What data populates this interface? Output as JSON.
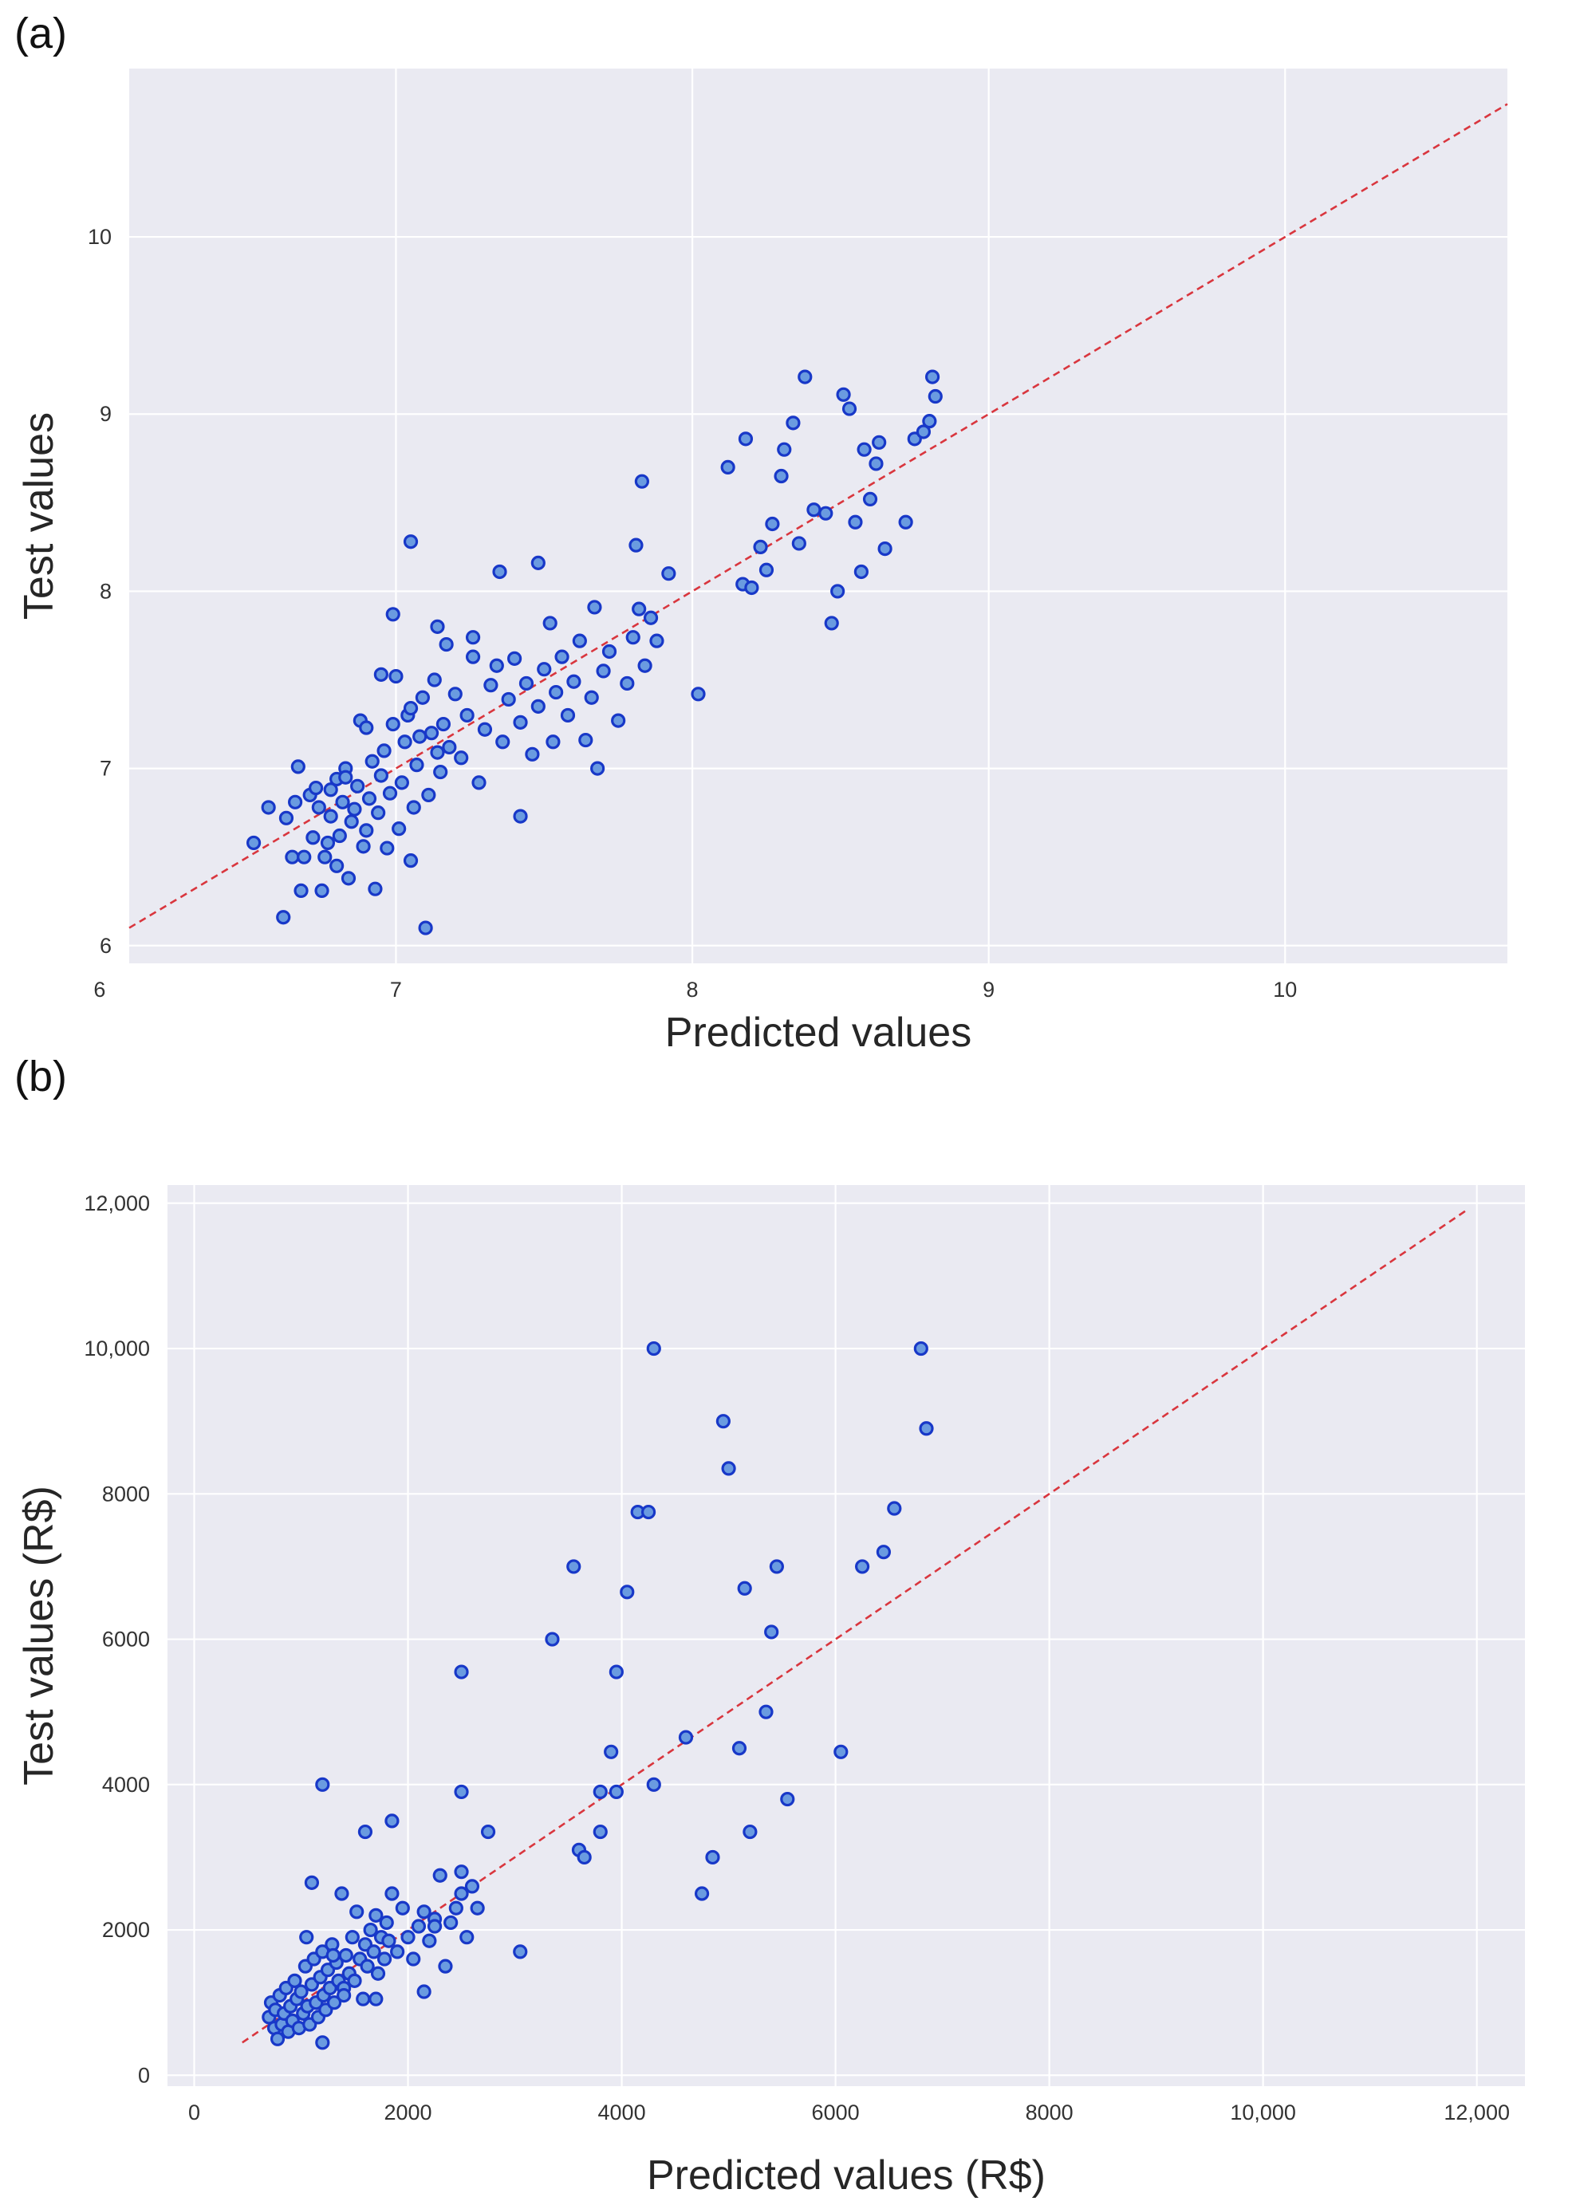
{
  "chart_data": [
    {
      "panel": "(a)",
      "type": "scatter",
      "title": "",
      "xlabel": "Predicted values",
      "ylabel": "Test values",
      "xlim": [
        6.1,
        10.75
      ],
      "ylim": [
        5.9,
        10.95
      ],
      "xticks": [
        6,
        7,
        8,
        9,
        10
      ],
      "yticks": [
        6,
        7,
        8,
        9,
        10
      ],
      "xtick_labels": [
        "6",
        "7",
        "8",
        "9",
        "10"
      ],
      "ytick_labels": [
        "6",
        "7",
        "8",
        "9",
        "10"
      ],
      "grid": true,
      "reference_line": {
        "style": "dashed",
        "color": "#d9363e",
        "from": [
          6.1,
          6.1
        ],
        "to": [
          10.75,
          10.75
        ]
      },
      "marker_fill": "#6a9be0",
      "marker_edge": "#1838c8",
      "points": [
        [
          6.52,
          6.58
        ],
        [
          6.57,
          6.78
        ],
        [
          6.62,
          6.16
        ],
        [
          6.63,
          6.72
        ],
        [
          6.65,
          6.5
        ],
        [
          6.66,
          6.81
        ],
        [
          6.67,
          7.01
        ],
        [
          6.68,
          6.31
        ],
        [
          6.69,
          6.5
        ],
        [
          6.71,
          6.85
        ],
        [
          6.72,
          6.61
        ],
        [
          6.73,
          6.89
        ],
        [
          6.74,
          6.78
        ],
        [
          6.75,
          6.31
        ],
        [
          6.76,
          6.5
        ],
        [
          6.77,
          6.58
        ],
        [
          6.78,
          6.73
        ],
        [
          6.78,
          6.88
        ],
        [
          6.8,
          6.45
        ],
        [
          6.8,
          6.94
        ],
        [
          6.81,
          6.62
        ],
        [
          6.82,
          6.81
        ],
        [
          6.83,
          7.0
        ],
        [
          6.84,
          6.38
        ],
        [
          6.85,
          6.7
        ],
        [
          6.86,
          6.77
        ],
        [
          6.87,
          6.9
        ],
        [
          6.88,
          7.27
        ],
        [
          6.89,
          6.56
        ],
        [
          6.9,
          6.65
        ],
        [
          6.91,
          6.83
        ],
        [
          6.92,
          7.04
        ],
        [
          6.93,
          6.32
        ],
        [
          6.94,
          6.75
        ],
        [
          6.95,
          6.96
        ],
        [
          6.96,
          7.1
        ],
        [
          6.97,
          6.55
        ],
        [
          6.98,
          6.86
        ],
        [
          6.99,
          7.25
        ],
        [
          7.0,
          7.52
        ],
        [
          7.01,
          6.66
        ],
        [
          7.02,
          6.92
        ],
        [
          7.03,
          7.15
        ],
        [
          7.04,
          7.3
        ],
        [
          7.05,
          6.48
        ],
        [
          7.06,
          6.78
        ],
        [
          7.07,
          7.02
        ],
        [
          7.08,
          7.18
        ],
        [
          7.09,
          7.4
        ],
        [
          7.1,
          6.1
        ],
        [
          7.11,
          6.85
        ],
        [
          7.12,
          7.2
        ],
        [
          7.13,
          7.5
        ],
        [
          7.14,
          7.8
        ],
        [
          7.15,
          6.98
        ],
        [
          7.16,
          7.25
        ],
        [
          7.17,
          7.7
        ],
        [
          7.18,
          7.12
        ],
        [
          6.99,
          7.87
        ],
        [
          7.05,
          7.34
        ],
        [
          7.2,
          7.42
        ],
        [
          7.22,
          7.06
        ],
        [
          7.24,
          7.3
        ],
        [
          7.26,
          7.74
        ],
        [
          7.28,
          6.92
        ],
        [
          7.3,
          7.22
        ],
        [
          7.32,
          7.47
        ],
        [
          7.34,
          7.58
        ],
        [
          7.36,
          7.15
        ],
        [
          7.38,
          7.39
        ],
        [
          7.4,
          7.62
        ],
        [
          7.42,
          7.26
        ],
        [
          7.44,
          7.48
        ],
        [
          7.46,
          7.08
        ],
        [
          7.48,
          7.35
        ],
        [
          7.5,
          7.56
        ],
        [
          7.52,
          7.82
        ],
        [
          7.54,
          7.43
        ],
        [
          7.56,
          7.63
        ],
        [
          7.58,
          7.3
        ],
        [
          7.6,
          7.49
        ],
        [
          7.62,
          7.72
        ],
        [
          7.64,
          7.16
        ],
        [
          7.66,
          7.4
        ],
        [
          7.68,
          7.0
        ],
        [
          7.7,
          7.55
        ],
        [
          7.72,
          7.66
        ],
        [
          7.75,
          7.27
        ],
        [
          7.78,
          7.48
        ],
        [
          7.8,
          7.74
        ],
        [
          7.82,
          7.9
        ],
        [
          7.84,
          7.58
        ],
        [
          7.86,
          7.85
        ],
        [
          7.88,
          7.72
        ],
        [
          7.05,
          8.28
        ],
        [
          7.35,
          8.11
        ],
        [
          7.48,
          8.16
        ],
        [
          7.81,
          8.26
        ],
        [
          7.83,
          8.62
        ],
        [
          7.92,
          8.1
        ],
        [
          8.02,
          7.42
        ],
        [
          8.12,
          8.7
        ],
        [
          8.17,
          8.04
        ],
        [
          8.18,
          8.86
        ],
        [
          8.2,
          8.02
        ],
        [
          8.23,
          8.25
        ],
        [
          8.25,
          8.12
        ],
        [
          8.27,
          8.38
        ],
        [
          8.3,
          8.65
        ],
        [
          8.31,
          8.8
        ],
        [
          8.34,
          8.95
        ],
        [
          8.36,
          8.27
        ],
        [
          8.38,
          9.21
        ],
        [
          8.41,
          8.46
        ],
        [
          8.45,
          8.44
        ],
        [
          8.47,
          7.82
        ],
        [
          8.49,
          8.0
        ],
        [
          8.51,
          9.11
        ],
        [
          8.53,
          9.03
        ],
        [
          8.55,
          8.39
        ],
        [
          8.57,
          8.11
        ],
        [
          8.58,
          8.8
        ],
        [
          8.6,
          8.52
        ],
        [
          8.62,
          8.72
        ],
        [
          8.63,
          8.84
        ],
        [
          8.65,
          8.24
        ],
        [
          8.72,
          8.39
        ],
        [
          8.75,
          8.86
        ],
        [
          8.78,
          8.9
        ],
        [
          8.8,
          8.96
        ],
        [
          8.81,
          9.21
        ],
        [
          8.82,
          9.1
        ],
        [
          6.95,
          7.53
        ],
        [
          7.14,
          7.09
        ],
        [
          7.26,
          7.63
        ],
        [
          7.42,
          6.73
        ],
        [
          7.53,
          7.15
        ],
        [
          7.67,
          7.91
        ],
        [
          6.83,
          6.95
        ],
        [
          6.9,
          7.23
        ]
      ]
    },
    {
      "panel": "(b)",
      "type": "scatter",
      "title": "",
      "xlabel": "Predicted values (R$)",
      "ylabel": "Test values (R$)",
      "xlim": [
        -250,
        12450
      ],
      "ylim": [
        -150,
        12250
      ],
      "xticks": [
        0,
        2000,
        4000,
        6000,
        8000,
        10000,
        12000
      ],
      "yticks": [
        0,
        2000,
        4000,
        6000,
        8000,
        10000,
        12000
      ],
      "xtick_labels": [
        "0",
        "2000",
        "4000",
        "6000",
        "8000",
        "10,000",
        "12,000"
      ],
      "ytick_labels": [
        "0",
        "2000",
        "4000",
        "6000",
        "8000",
        "10,000",
        "12,000"
      ],
      "grid": true,
      "reference_line": {
        "style": "dashed",
        "color": "#d9363e",
        "from": [
          450,
          450
        ],
        "to": [
          11900,
          11900
        ]
      },
      "marker_fill": "#6a9be0",
      "marker_edge": "#1838c8",
      "points": [
        [
          700,
          800
        ],
        [
          720,
          1000
        ],
        [
          750,
          650
        ],
        [
          760,
          900
        ],
        [
          780,
          500
        ],
        [
          800,
          1100
        ],
        [
          820,
          700
        ],
        [
          840,
          850
        ],
        [
          860,
          1200
        ],
        [
          880,
          600
        ],
        [
          900,
          950
        ],
        [
          920,
          750
        ],
        [
          940,
          1300
        ],
        [
          960,
          1050
        ],
        [
          980,
          650
        ],
        [
          1000,
          1150
        ],
        [
          1020,
          850
        ],
        [
          1040,
          1500
        ],
        [
          1060,
          950
        ],
        [
          1080,
          700
        ],
        [
          1100,
          1250
        ],
        [
          1120,
          1600
        ],
        [
          1140,
          1000
        ],
        [
          1160,
          800
        ],
        [
          1180,
          1350
        ],
        [
          1200,
          1700
        ],
        [
          1210,
          1100
        ],
        [
          1230,
          900
        ],
        [
          1250,
          1450
        ],
        [
          1270,
          1200
        ],
        [
          1290,
          1800
        ],
        [
          1310,
          1000
        ],
        [
          1330,
          1550
        ],
        [
          1350,
          1300
        ],
        [
          1380,
          2500
        ],
        [
          1400,
          1200
        ],
        [
          1420,
          1650
        ],
        [
          1450,
          1400
        ],
        [
          1480,
          1900
        ],
        [
          1500,
          1300
        ],
        [
          1520,
          2250
        ],
        [
          1550,
          1600
        ],
        [
          1580,
          1050
        ],
        [
          1600,
          1800
        ],
        [
          1620,
          1500
        ],
        [
          1650,
          2000
        ],
        [
          1680,
          1700
        ],
        [
          1700,
          2200
        ],
        [
          1720,
          1400
        ],
        [
          1750,
          1900
        ],
        [
          1780,
          1600
        ],
        [
          1800,
          2100
        ],
        [
          1820,
          1850
        ],
        [
          1850,
          2500
        ],
        [
          1900,
          1700
        ],
        [
          1950,
          2300
        ],
        [
          2000,
          1900
        ],
        [
          2050,
          1600
        ],
        [
          2100,
          2050
        ],
        [
          2150,
          2250
        ],
        [
          2200,
          1850
        ],
        [
          2250,
          2150
        ],
        [
          2300,
          2750
        ],
        [
          2350,
          1500
        ],
        [
          2400,
          2100
        ],
        [
          2450,
          2300
        ],
        [
          2500,
          2800
        ],
        [
          2550,
          1900
        ],
        [
          2600,
          2600
        ],
        [
          2650,
          2300
        ],
        [
          2750,
          3350
        ],
        [
          2500,
          3900
        ],
        [
          2500,
          5550
        ],
        [
          3050,
          1700
        ],
        [
          3350,
          6000
        ],
        [
          3550,
          7000
        ],
        [
          3600,
          3100
        ],
        [
          3650,
          3000
        ],
        [
          3800,
          3350
        ],
        [
          3800,
          3900
        ],
        [
          3900,
          4450
        ],
        [
          3950,
          3900
        ],
        [
          3950,
          5550
        ],
        [
          4050,
          6650
        ],
        [
          4150,
          7750
        ],
        [
          4250,
          7750
        ],
        [
          4300,
          10000
        ],
        [
          4300,
          4000
        ],
        [
          4600,
          4650
        ],
        [
          4750,
          2500
        ],
        [
          4850,
          3000
        ],
        [
          4950,
          9000
        ],
        [
          5000,
          8350
        ],
        [
          5100,
          4500
        ],
        [
          5150,
          6700
        ],
        [
          5200,
          3350
        ],
        [
          5350,
          5000
        ],
        [
          5400,
          6100
        ],
        [
          5450,
          7000
        ],
        [
          5550,
          3800
        ],
        [
          6050,
          4450
        ],
        [
          6250,
          7000
        ],
        [
          6450,
          7200
        ],
        [
          6550,
          7800
        ],
        [
          6800,
          10000
        ],
        [
          6850,
          8900
        ],
        [
          1200,
          4000
        ],
        [
          1100,
          2650
        ],
        [
          1200,
          450
        ],
        [
          1600,
          3350
        ],
        [
          1850,
          3500
        ],
        [
          1050,
          1900
        ],
        [
          1300,
          1650
        ],
        [
          1400,
          1100
        ],
        [
          1700,
          1050
        ],
        [
          2150,
          1150
        ],
        [
          2250,
          2050
        ],
        [
          2500,
          2500
        ]
      ]
    }
  ]
}
